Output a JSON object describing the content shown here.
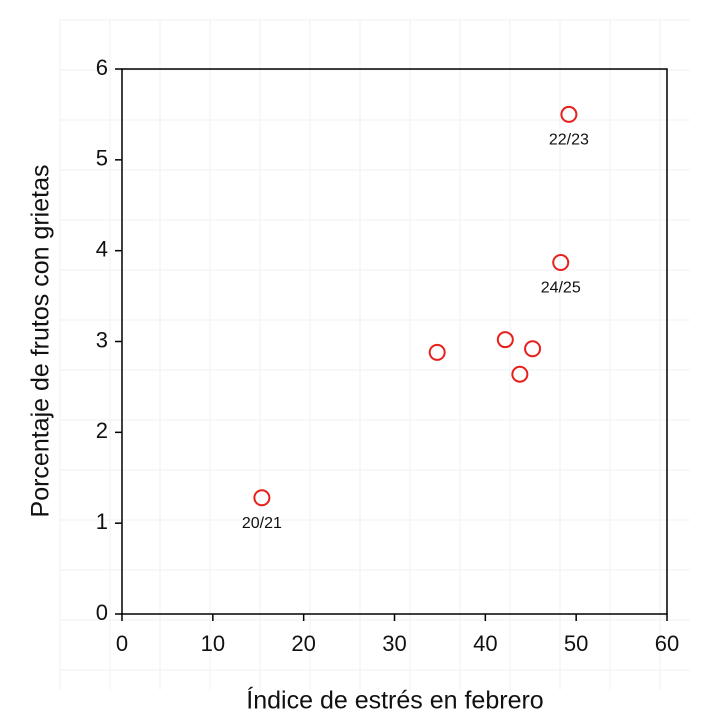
{
  "chart_data": {
    "type": "scatter",
    "x_label": "Índice de estrés en febrero",
    "y_label": "Porcentaje de frutos con grietas",
    "series": [
      {
        "color": "#e8201c",
        "x": [
          15.4,
          34.7,
          42.2,
          45.2,
          43.8,
          48.3,
          49.2
        ],
        "values": [
          1.28,
          2.88,
          3.02,
          2.92,
          2.64,
          3.87,
          5.5
        ],
        "labels": [
          "20/21",
          null,
          null,
          null,
          null,
          "24/25",
          "22/23"
        ]
      }
    ],
    "xlim": [
      0,
      60
    ],
    "xticks": [
      0,
      10,
      20,
      30,
      40,
      50,
      60
    ],
    "ylim": [
      0,
      6
    ],
    "yticks": [
      0,
      1,
      2,
      3,
      4,
      5,
      6
    ]
  }
}
